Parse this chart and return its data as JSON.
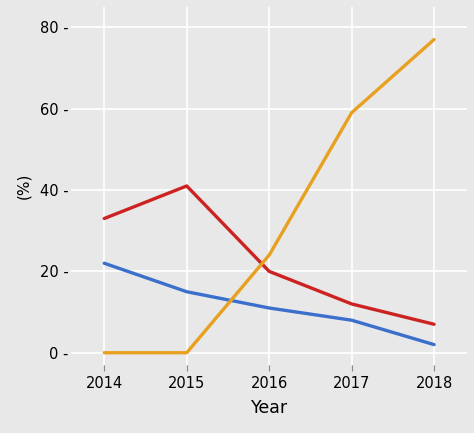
{
  "years": [
    2014,
    2015,
    2016,
    2017,
    2018
  ],
  "blue": [
    22,
    15,
    11,
    8,
    2
  ],
  "red": [
    33,
    41,
    20,
    12,
    7
  ],
  "orange": [
    0,
    0,
    24,
    59,
    77
  ],
  "blue_color": "#3B6FCC",
  "red_color": "#CC2222",
  "orange_color": "#E8A020",
  "background_color": "#E8E8E8",
  "panel_color": "#E8E8E8",
  "ylabel": "(%)",
  "xlabel": "Year",
  "ylim": [
    -3,
    85
  ],
  "xlim": [
    2013.6,
    2018.4
  ],
  "yticks": [
    0,
    20,
    40,
    60,
    80
  ],
  "xticks": [
    2014,
    2015,
    2016,
    2017,
    2018
  ],
  "line_width": 2.4,
  "grid_color": "#FFFFFF",
  "grid_linewidth": 1.2
}
